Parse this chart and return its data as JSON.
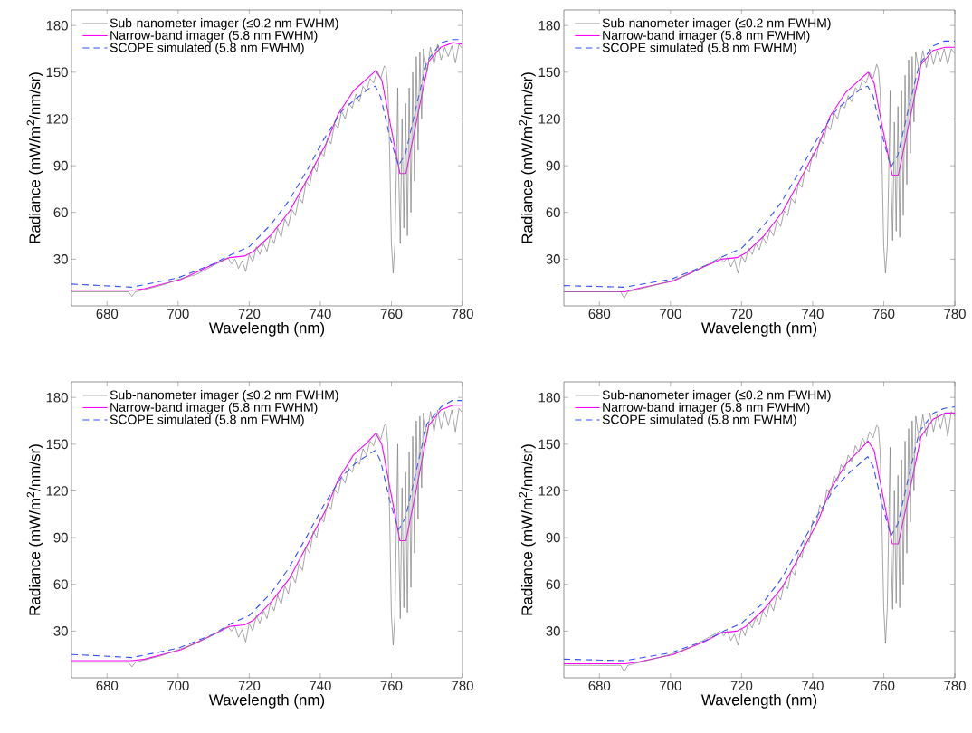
{
  "chart_data": [
    {
      "type": "line",
      "xlabel": "Wavelength (nm)",
      "ylabel": "Radiance (mW/m$^{2}$/nm/sr)",
      "xlim": [
        670,
        780
      ],
      "ylim": [
        0,
        190
      ],
      "xticks": [
        680,
        700,
        720,
        740,
        760,
        780
      ],
      "yticks": [
        30,
        60,
        90,
        120,
        150,
        180
      ],
      "legend": "top left",
      "grid": false,
      "series": [
        {
          "name": "Sub-nanometer imager (≤0.2 nm FWHM)",
          "color": "#808080",
          "line_style": "solid",
          "x": [
            670,
            680,
            686,
            687,
            688,
            695,
            700,
            705,
            710,
            714,
            715,
            716,
            717,
            718,
            719,
            720,
            721,
            722,
            723,
            724,
            725,
            726,
            727,
            728,
            729,
            730,
            731,
            732,
            733,
            734,
            735,
            736,
            737,
            738,
            739,
            740,
            741,
            742,
            743,
            744,
            745,
            746,
            747,
            748,
            749,
            750,
            751,
            752,
            753,
            754,
            755,
            756,
            757,
            758,
            758.5,
            759,
            759.5,
            760,
            760.5,
            761,
            761.5,
            761.8,
            762,
            762.5,
            763,
            763.5,
            764,
            764.5,
            765,
            765.5,
            766,
            766.5,
            767,
            767.5,
            768,
            768.5,
            769,
            770,
            771,
            772,
            773,
            774,
            775,
            776,
            777,
            778,
            779,
            780
          ],
          "values": [
            9,
            9,
            9,
            6,
            9,
            13,
            17,
            20,
            26,
            31,
            27,
            30,
            24,
            29,
            22,
            33,
            28,
            38,
            33,
            40,
            35,
            45,
            40,
            50,
            44,
            56,
            51,
            62,
            58,
            70,
            66,
            80,
            77,
            90,
            86,
            99,
            96,
            108,
            104,
            117,
            114,
            125,
            120,
            130,
            127,
            136,
            131,
            141,
            138,
            146,
            143,
            151,
            146,
            154,
            153,
            140,
            100,
            40,
            21,
            40,
            100,
            140,
            90,
            40,
            120,
            50,
            130,
            45,
            140,
            60,
            150,
            80,
            160,
            100,
            163,
            120,
            165,
            150,
            166,
            155,
            168,
            158,
            166,
            160,
            167,
            156,
            168,
            165
          ]
        },
        {
          "name": "Narrow-band imager (5.8 nm FWHM)",
          "color": "#ff00ff",
          "line_style": "solid",
          "x": [
            670,
            687.2,
            690.6,
            700.8,
            709.3,
            714.4,
            718.7,
            721.2,
            726.3,
            731.4,
            736.5,
            741.6,
            745,
            749.3,
            752.7,
            755.6,
            757.3,
            759.5,
            762.4,
            764.1,
            767.1,
            770.5,
            773.9,
            777.3,
            780
          ],
          "values": [
            10,
            10,
            11,
            17,
            26,
            31,
            32,
            35,
            46,
            61,
            82,
            104,
            123,
            138,
            145,
            151,
            145,
            119,
            85,
            85,
            119,
            157,
            166,
            169,
            168
          ]
        },
        {
          "name": "SCOPE simulated (5.8 nm FWHM)",
          "color": "#3050ff",
          "line_style": "dashed",
          "x": [
            670,
            687,
            700,
            710,
            715,
            720,
            726,
            731,
            736,
            741,
            746,
            750,
            754,
            755.5,
            757,
            759.5,
            762,
            764,
            767,
            770,
            774,
            777,
            780
          ],
          "values": [
            14,
            12,
            18,
            27,
            33,
            38,
            52,
            67,
            86,
            107,
            125,
            133,
            140,
            141,
            134,
            109,
            90,
            98,
            128,
            157,
            169,
            171,
            171
          ]
        }
      ]
    },
    {
      "type": "line",
      "xlabel": "Wavelength (nm)",
      "ylabel": "Radiance (mW/m$^{2}$/nm/sr)",
      "xlim": [
        670,
        780
      ],
      "ylim": [
        0,
        190
      ],
      "xticks": [
        680,
        700,
        720,
        740,
        760,
        780
      ],
      "yticks": [
        30,
        60,
        90,
        120,
        150,
        180
      ],
      "legend": "top left",
      "grid": false,
      "series": [
        {
          "name": "Sub-nanometer imager (≤0.2 nm FWHM)",
          "color": "#808080",
          "line_style": "solid",
          "x": [
            670,
            680,
            686,
            687,
            688,
            695,
            700,
            705,
            710,
            714,
            715,
            716,
            717,
            718,
            719,
            720,
            721,
            722,
            723,
            724,
            725,
            726,
            727,
            728,
            729,
            730,
            731,
            732,
            733,
            734,
            735,
            736,
            737,
            738,
            739,
            740,
            741,
            742,
            743,
            744,
            745,
            746,
            747,
            748,
            749,
            750,
            751,
            752,
            753,
            754,
            755,
            756,
            757,
            758,
            758.5,
            759,
            759.5,
            760,
            760.5,
            761,
            761.5,
            761.8,
            762,
            762.5,
            763,
            763.5,
            764,
            764.5,
            765,
            765.5,
            766,
            766.5,
            767,
            767.5,
            768,
            768.5,
            769,
            770,
            771,
            772,
            773,
            774,
            775,
            776,
            777,
            778,
            779,
            780
          ],
          "values": [
            9,
            9,
            9,
            5,
            9,
            13,
            16,
            20,
            26,
            31,
            28,
            31,
            25,
            30,
            21,
            32,
            28,
            37,
            33,
            40,
            36,
            44,
            40,
            49,
            45,
            55,
            51,
            61,
            58,
            69,
            66,
            79,
            76,
            89,
            86,
            98,
            95,
            107,
            104,
            116,
            113,
            124,
            120,
            129,
            127,
            135,
            131,
            140,
            138,
            145,
            143,
            150,
            146,
            155,
            152,
            138,
            95,
            38,
            21,
            38,
            95,
            138,
            88,
            42,
            118,
            48,
            128,
            44,
            138,
            58,
            148,
            78,
            158,
            98,
            160,
            118,
            163,
            150,
            164,
            153,
            165,
            155,
            164,
            157,
            165,
            155,
            165,
            162
          ]
        },
        {
          "name": "Narrow-band imager (5.8 nm FWHM)",
          "color": "#ff00ff",
          "line_style": "solid",
          "x": [
            670,
            687.2,
            690.6,
            700.8,
            709.3,
            714.4,
            718.7,
            721.2,
            726.3,
            731.4,
            736.5,
            741.6,
            745,
            749.3,
            752.7,
            755.6,
            757.3,
            759.5,
            762.4,
            764.1,
            767.1,
            770.5,
            773.9,
            777.3,
            780
          ],
          "values": [
            9,
            9,
            11,
            16,
            25,
            30,
            31,
            34,
            45,
            60,
            81,
            103,
            122,
            137,
            144,
            150,
            143,
            116,
            84,
            84,
            117,
            155,
            164,
            166,
            166
          ]
        },
        {
          "name": "SCOPE simulated (5.8 nm FWHM)",
          "color": "#3050ff",
          "line_style": "dashed",
          "x": [
            670,
            687,
            700,
            710,
            715,
            720,
            726,
            731,
            736,
            741,
            746,
            750,
            754,
            755.5,
            757,
            759.5,
            762,
            764,
            767,
            770,
            774,
            777,
            780
          ],
          "values": [
            13,
            12,
            17,
            26,
            32,
            37,
            51,
            66,
            85,
            106,
            124,
            133,
            140,
            141,
            135,
            110,
            89,
            97,
            127,
            155,
            167,
            170,
            170
          ]
        }
      ]
    },
    {
      "type": "line",
      "xlabel": "Wavelength (nm)",
      "ylabel": "Radiance (mW/m$^{2}$/nm/sr)",
      "xlim": [
        670,
        780
      ],
      "ylim": [
        0,
        190
      ],
      "xticks": [
        680,
        700,
        720,
        740,
        760,
        780
      ],
      "yticks": [
        30,
        60,
        90,
        120,
        150,
        180
      ],
      "legend": "top left",
      "grid": false,
      "series": [
        {
          "name": "Sub-nanometer imager (≤0.2 nm FWHM)",
          "color": "#808080",
          "line_style": "solid",
          "x": [
            670,
            680,
            686,
            687,
            688,
            695,
            700,
            705,
            710,
            714,
            715,
            716,
            717,
            718,
            719,
            720,
            721,
            722,
            723,
            724,
            725,
            726,
            727,
            728,
            729,
            730,
            731,
            732,
            733,
            734,
            735,
            736,
            737,
            738,
            739,
            740,
            741,
            742,
            743,
            744,
            745,
            746,
            747,
            748,
            749,
            750,
            751,
            752,
            753,
            754,
            755,
            756,
            757,
            758,
            758.5,
            759,
            759.5,
            760,
            760.5,
            761,
            761.5,
            761.8,
            762,
            762.5,
            763,
            763.5,
            764,
            764.5,
            765,
            765.5,
            766,
            766.5,
            767,
            767.5,
            768,
            768.5,
            769,
            770,
            771,
            772,
            773,
            774,
            775,
            776,
            777,
            778,
            779,
            780
          ],
          "values": [
            10,
            10,
            10,
            7,
            10,
            14,
            18,
            22,
            28,
            33,
            30,
            33,
            26,
            31,
            23,
            35,
            30,
            40,
            35,
            43,
            38,
            48,
            43,
            53,
            47,
            59,
            54,
            66,
            61,
            73,
            69,
            84,
            80,
            94,
            90,
            103,
            100,
            112,
            108,
            121,
            118,
            129,
            125,
            135,
            132,
            141,
            137,
            147,
            143,
            152,
            149,
            157,
            153,
            162,
            163,
            150,
            105,
            40,
            21,
            40,
            110,
            150,
            92,
            38,
            122,
            45,
            132,
            42,
            145,
            58,
            155,
            80,
            165,
            102,
            168,
            122,
            170,
            155,
            171,
            158,
            172,
            160,
            171,
            162,
            172,
            158,
            173,
            170
          ]
        },
        {
          "name": "Narrow-band imager (5.8 nm FWHM)",
          "color": "#ff00ff",
          "line_style": "solid",
          "x": [
            670,
            687.2,
            690.6,
            700.8,
            709.3,
            714.4,
            718.7,
            721.2,
            726.3,
            731.4,
            736.5,
            741.6,
            745,
            749.3,
            752.7,
            755.6,
            757.3,
            759.5,
            762.4,
            764.1,
            767.1,
            770.5,
            773.9,
            777.3,
            780
          ],
          "values": [
            11,
            11,
            12,
            18,
            27,
            33,
            34,
            37,
            49,
            64,
            86,
            108,
            127,
            143,
            150,
            157,
            150,
            123,
            88,
            88,
            122,
            162,
            172,
            175,
            175
          ]
        },
        {
          "name": "SCOPE simulated (5.8 nm FWHM)",
          "color": "#3050ff",
          "line_style": "dashed",
          "x": [
            670,
            687,
            700,
            710,
            715,
            720,
            726,
            731,
            736,
            741,
            746,
            750,
            754,
            755.5,
            757,
            759.5,
            762,
            764,
            767,
            770,
            774,
            777,
            780
          ],
          "values": [
            15,
            13,
            19,
            28,
            35,
            40,
            54,
            70,
            90,
            111,
            129,
            138,
            144,
            146,
            139,
            114,
            95,
            103,
            133,
            163,
            174,
            178,
            178
          ]
        }
      ]
    },
    {
      "type": "line",
      "xlabel": "Wavelength (nm)",
      "ylabel": "Radiance (mW/m$^{2}$/nm/sr)",
      "xlim": [
        670,
        780
      ],
      "ylim": [
        0,
        190
      ],
      "xticks": [
        680,
        700,
        720,
        740,
        760,
        780
      ],
      "yticks": [
        30,
        60,
        90,
        120,
        150,
        180
      ],
      "legend": "top left",
      "grid": false,
      "series": [
        {
          "name": "Sub-nanometer imager (≤0.2 nm FWHM)",
          "color": "#808080",
          "line_style": "solid",
          "x": [
            670,
            680,
            686,
            687,
            688,
            695,
            700,
            705,
            710,
            714,
            715,
            716,
            717,
            718,
            719,
            720,
            721,
            722,
            723,
            724,
            725,
            726,
            727,
            728,
            729,
            730,
            731,
            732,
            733,
            734,
            735,
            736,
            737,
            738,
            739,
            740,
            741,
            742,
            743,
            744,
            745,
            746,
            747,
            748,
            749,
            750,
            751,
            752,
            753,
            754,
            755,
            756,
            757,
            758,
            758.5,
            759,
            759.5,
            760,
            760.5,
            761,
            761.5,
            761.8,
            762,
            762.5,
            763,
            763.5,
            764,
            764.5,
            765,
            765.5,
            766,
            766.5,
            767,
            767.5,
            768,
            768.5,
            769,
            770,
            771,
            772,
            773,
            774,
            775,
            776,
            777,
            778,
            779,
            780
          ],
          "values": [
            8,
            8,
            8,
            4,
            8,
            12,
            15,
            19,
            25,
            30,
            27,
            30,
            24,
            28,
            21,
            32,
            27,
            36,
            32,
            39,
            34,
            43,
            39,
            48,
            43,
            54,
            50,
            61,
            57,
            69,
            66,
            80,
            77,
            91,
            87,
            101,
            98,
            111,
            107,
            121,
            118,
            130,
            126,
            137,
            133,
            143,
            139,
            149,
            145,
            154,
            150,
            158,
            154,
            162,
            161,
            145,
            100,
            45,
            22,
            45,
            110,
            148,
            90,
            44,
            120,
            48,
            130,
            45,
            140,
            60,
            152,
            80,
            160,
            100,
            165,
            120,
            168,
            152,
            169,
            155,
            170,
            158,
            169,
            160,
            170,
            155,
            171,
            168
          ]
        },
        {
          "name": "Narrow-band imager (5.8 nm FWHM)",
          "color": "#ff00ff",
          "line_style": "solid",
          "x": [
            670,
            687.2,
            690.6,
            700.8,
            709.3,
            714.4,
            718.7,
            721.2,
            726.3,
            731.4,
            736.5,
            741.6,
            745,
            749.3,
            752.7,
            755.6,
            757.3,
            759.5,
            762.4,
            764.1,
            767.1,
            770.5,
            773.9,
            777.3,
            780
          ],
          "values": [
            9,
            9,
            10,
            15,
            23,
            29,
            30,
            33,
            44,
            58,
            79,
            101,
            121,
            137,
            145,
            152,
            146,
            120,
            86,
            86,
            118,
            155,
            166,
            170,
            170
          ]
        },
        {
          "name": "SCOPE simulated (5.8 nm FWHM)",
          "color": "#3050ff",
          "line_style": "dashed",
          "x": [
            670,
            687,
            700,
            710,
            715,
            720,
            726,
            731,
            736,
            741,
            746,
            750,
            754,
            755.5,
            757,
            759.5,
            762,
            764,
            767,
            770,
            774,
            777,
            780
          ],
          "values": [
            12,
            11,
            16,
            24,
            30,
            35,
            48,
            63,
            82,
            103,
            121,
            131,
            139,
            142,
            136,
            112,
            91,
            99,
            129,
            158,
            170,
            173,
            174
          ]
        }
      ]
    }
  ]
}
